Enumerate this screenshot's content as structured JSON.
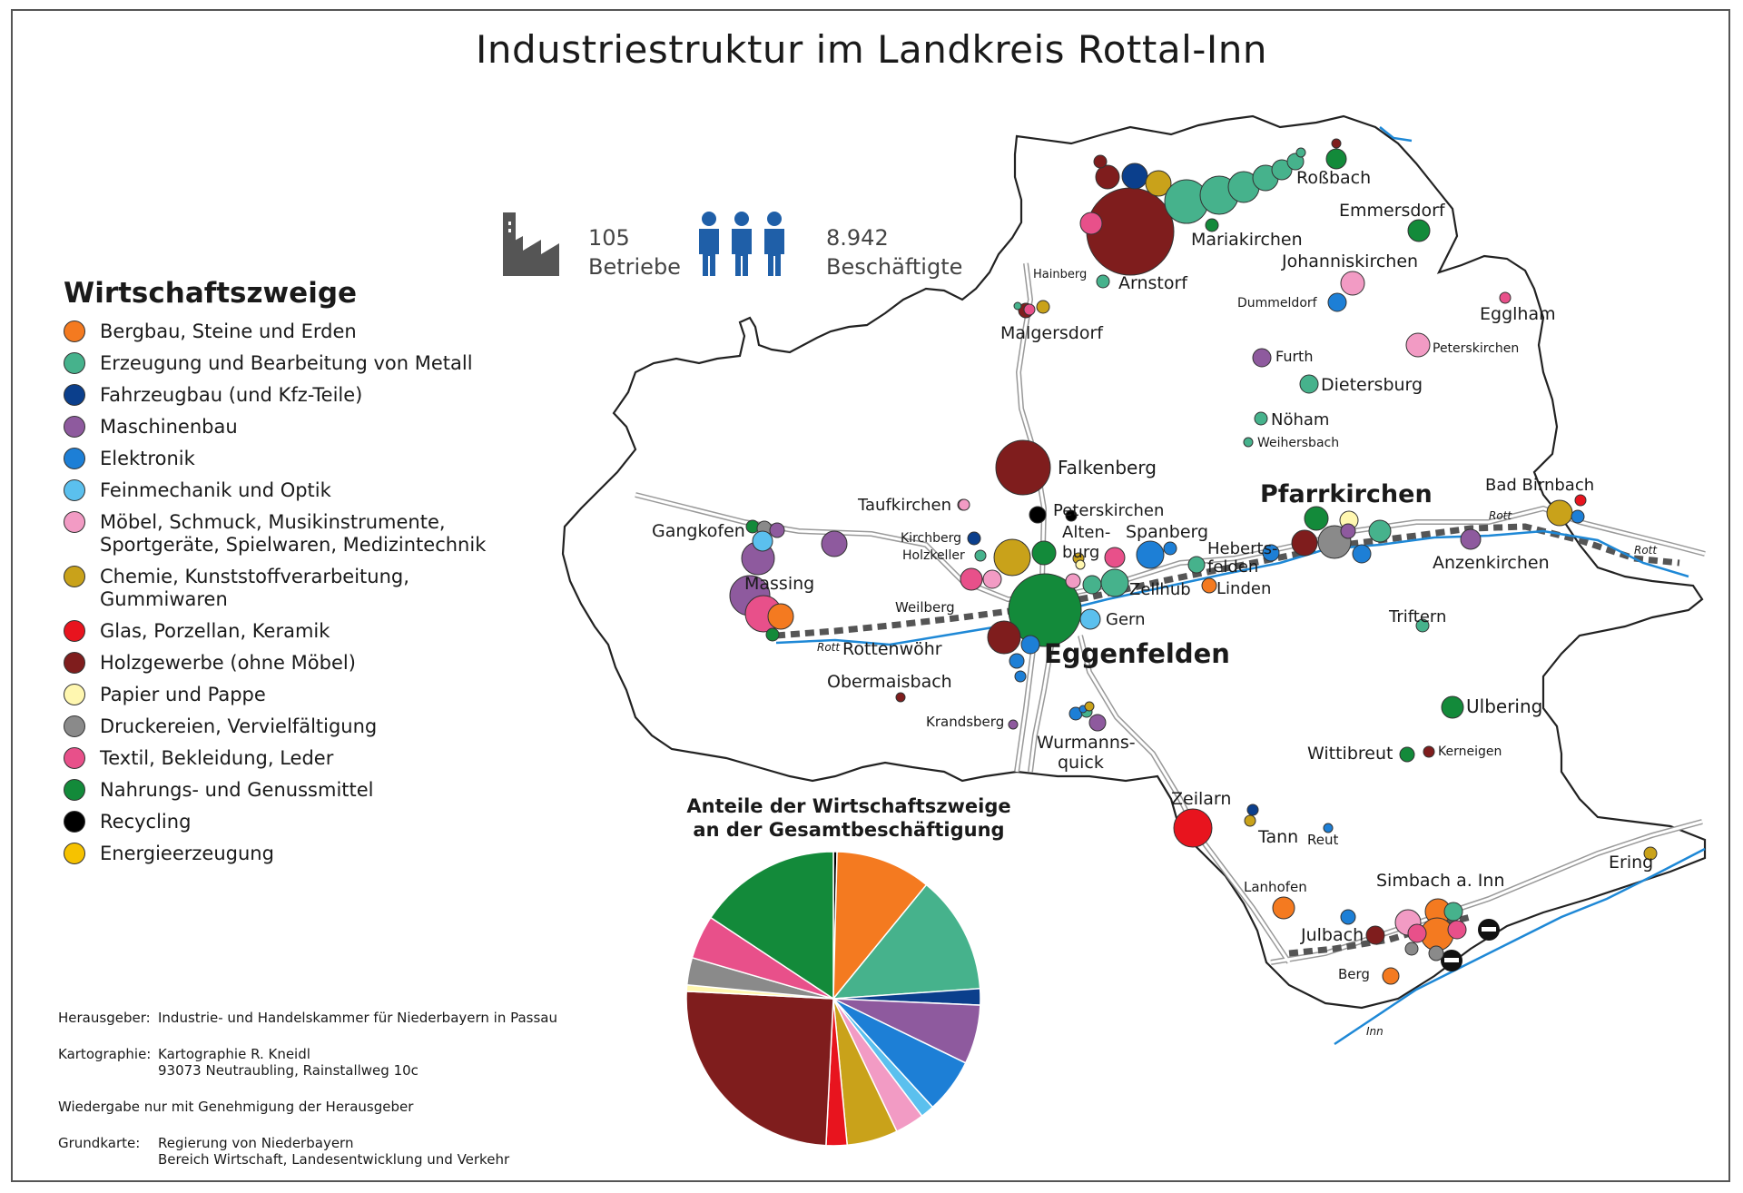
{
  "title": "Industriestruktur im Landkreis Rottal-Inn",
  "stats": {
    "betriebe_value": "105",
    "betriebe_label": "Betriebe",
    "beschaeftigte_value": "8.942",
    "beschaeftigte_label": "Beschäftigte"
  },
  "legend": {
    "title": "Wirtschaftszweige",
    "items": [
      {
        "label": "Bergbau, Steine und Erden",
        "color": "#f47a20"
      },
      {
        "label": "Erzeugung und Bearbeitung von Metall",
        "color": "#46b28c"
      },
      {
        "label": "Fahrzeugbau (und Kfz-Teile)",
        "color": "#0b3f8c"
      },
      {
        "label": "Maschinenbau",
        "color": "#8e5a9e"
      },
      {
        "label": "Elektronik",
        "color": "#1d7fd6"
      },
      {
        "label": "Feinmechanik und Optik",
        "color": "#5bc0ee"
      },
      {
        "label": "Möbel, Schmuck, Musikinstrumente, Sportgeräte, Spielwaren, Medizintechnik",
        "color": "#f29bc4"
      },
      {
        "label": "Chemie, Kunststoffverarbeitung, Gummiwaren",
        "color": "#c9a21a"
      },
      {
        "label": "Glas, Porzellan, Keramik",
        "color": "#e8141e"
      },
      {
        "label": "Holzgewerbe (ohne Möbel)",
        "color": "#7f1d1d"
      },
      {
        "label": "Papier und Pappe",
        "color": "#fff7b0"
      },
      {
        "label": "Druckereien, Vervielfältigung",
        "color": "#8a8a8a"
      },
      {
        "label": "Textil, Bekleidung, Leder",
        "color": "#e8508a"
      },
      {
        "label": "Nahrungs- und Genussmittel",
        "color": "#138a3a"
      },
      {
        "label": "Recycling",
        "color": "#000000"
      },
      {
        "label": "Energieerzeugung",
        "color": "#f6c200"
      }
    ]
  },
  "pie": {
    "title_line1": "Anteile der Wirtschaftszweige",
    "title_line2": "an der Gesamtbeschäftigung",
    "slices": [
      {
        "name": "Recycling",
        "value": 0.4,
        "color": "#000000"
      },
      {
        "name": "Bergbau, Steine und Erden",
        "value": 10.5,
        "color": "#f47a20"
      },
      {
        "name": "Erzeugung und Bearbeitung von Metall",
        "value": 13.0,
        "color": "#46b28c"
      },
      {
        "name": "Fahrzeugbau (und Kfz-Teile)",
        "value": 1.8,
        "color": "#0b3f8c"
      },
      {
        "name": "Maschinenbau",
        "value": 6.5,
        "color": "#8e5a9e"
      },
      {
        "name": "Elektronik",
        "value": 6.0,
        "color": "#1d7fd6"
      },
      {
        "name": "Feinmechanik und Optik",
        "value": 1.5,
        "color": "#5bc0ee"
      },
      {
        "name": "Möbel, Schmuck, Musikinstrumente, Sportgeräte, Spielwaren, Medizintechnik",
        "value": 3.2,
        "color": "#f29bc4"
      },
      {
        "name": "Chemie, Kunststoffverarbeitung, Gummiwaren",
        "value": 5.6,
        "color": "#c9a21a"
      },
      {
        "name": "Glas, Porzellan, Keramik",
        "value": 2.3,
        "color": "#e8141e"
      },
      {
        "name": "Holzgewerbe (ohne Möbel)",
        "value": 25.0,
        "color": "#7f1d1d"
      },
      {
        "name": "Papier und Pappe",
        "value": 0.7,
        "color": "#fff7b0"
      },
      {
        "name": "Druckereien, Vervielfältigung",
        "value": 3.0,
        "color": "#8a8a8a"
      },
      {
        "name": "Textil, Bekleidung, Leder",
        "value": 4.8,
        "color": "#e8508a"
      },
      {
        "name": "Nahrungs- und Genussmittel",
        "value": 15.7,
        "color": "#138a3a"
      }
    ]
  },
  "credits": {
    "herausgeber_key": "Herausgeber:",
    "herausgeber_val": "Industrie- und Handelskammer für Niederbayern in Passau",
    "kartographie_key": "Kartographie:",
    "kartographie_val": "Kartographie R. Kneidl\n93073 Neutraubling, Rainstallweg 10c",
    "wiedergabe": "Wiedergabe nur mit Genehmigung der Herausgeber",
    "grundkarte_key": "Grundkarte:",
    "grundkarte_val": "Regierung von Niederbayern\nBereich Wirtschaft, Landesentwicklung und Verkehr"
  },
  "places": {
    "eggenfelden": "Eggenfelden",
    "pfarrkirchen": "Pfarrkirchen",
    "arnstorf": "Arnstorf",
    "mariakirchen": "Mariakirchen",
    "rossbach": "Roßbach",
    "emmersdorf": "Emmersdorf",
    "johanniskirchen": "Johanniskirchen",
    "dummeldorf": "Dummeldorf",
    "egglham": "Egglham",
    "peterskirchen_ne": "Peterskirchen",
    "hainberg": "Hainberg",
    "malgersdorf": "Malgersdorf",
    "furth": "Furth",
    "dietersburg": "Dietersburg",
    "noeham": "Nöham",
    "weihersbach": "Weihersbach",
    "falkenberg": "Falkenberg",
    "taufkirchen": "Taufkirchen",
    "peterskirchen_c": "Peterskirchen",
    "altenburg": "Alten-\nburg",
    "spanberg": "Spanberg",
    "hebertsfelden": "Heberts-\nfelden",
    "zell": "Zell",
    "hub": "hub",
    "linden": "Linden",
    "bad_birnbach": "Bad Birnbach",
    "anzenkirchen": "Anzenkirchen",
    "gangkofen": "Gangkofen",
    "massing": "Massing",
    "kirchberg": "Kirchberg",
    "holzkeller": "Holzkeller",
    "weilberg": "Weilberg",
    "rottenwoehr": "Rottenwöhr",
    "obermaisbach": "Obermaisbach",
    "gern": "Gern",
    "triftern": "Triftern",
    "krandsberg": "Krandsberg",
    "wurmannsquick": "Wurmanns-\nquick",
    "ulbering": "Ulbering",
    "wittibreut": "Wittibreut",
    "kerneigen": "Kerneigen",
    "zeilarn": "Zeilarn",
    "tann": "Tann",
    "reut": "Reut",
    "ering": "Ering",
    "lanhofen": "Lanhofen",
    "simbach": "Simbach a. Inn",
    "julbach": "Julbach",
    "berg": "Berg",
    "rott1": "Rott",
    "rott2": "Rott",
    "rott3": "Rott",
    "inn": "Inn"
  }
}
